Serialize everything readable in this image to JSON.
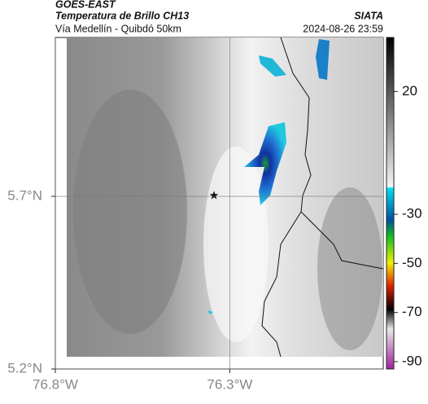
{
  "header": {
    "source": "GOES-EAST",
    "product": "Temperatura de Brillo CH13",
    "agency": "SIATA",
    "region": "Vía Medellín - Quibdó 50km",
    "timestamp": "2024-08-26 23:59"
  },
  "map": {
    "xlim": [
      -76.8,
      -75.86
    ],
    "ylim": [
      5.2,
      6.16
    ],
    "xticks": [
      {
        "value": -76.8,
        "label": "76.8°W"
      },
      {
        "value": -76.3,
        "label": "76.3°W"
      }
    ],
    "yticks": [
      {
        "value": 5.2,
        "label": "5.2°N"
      },
      {
        "value": 5.7,
        "label": "5.7°N"
      }
    ]
  },
  "colorbar": {
    "lim": [
      42,
      -93
    ],
    "ticks": [
      20,
      -30,
      -50,
      -70,
      -90
    ]
  }
}
